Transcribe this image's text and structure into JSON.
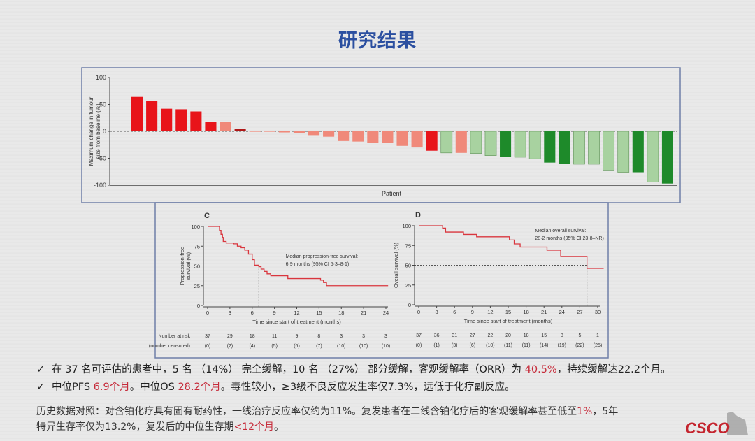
{
  "title": "研究结果",
  "colors": {
    "red": "#e8141a",
    "light_red": "#f0897a",
    "dark_red": "#b01818",
    "light_green": "#a8d2a0",
    "dark_green": "#1e8a2a",
    "km_line": "#d9363e",
    "title": "#2b4fa0"
  },
  "chart_data": [
    {
      "type": "bar",
      "subtype": "waterfall",
      "ylabel": "Maximum change in tumour size from baseline (%)",
      "xlabel": "Patient",
      "ylim": [
        -100,
        100
      ],
      "yticks": [
        "100",
        "50",
        "0",
        "-50",
        "-100"
      ],
      "values": [
        64,
        57,
        42,
        41,
        37,
        18,
        17,
        5,
        0.5,
        0.5,
        -2,
        -3,
        -7,
        -10,
        -18,
        -19,
        -21,
        -22,
        -27,
        -30,
        -36,
        -40,
        -40,
        -41,
        -45,
        -47,
        -48,
        -51,
        -58,
        -60,
        -61,
        -61,
        -72,
        -76,
        -76,
        -94,
        -97
      ],
      "bar_colors": [
        "red",
        "red",
        "red",
        "red",
        "red",
        "red",
        "light_red",
        "dark_red",
        "light_red",
        "light_red",
        "light_red",
        "light_red",
        "light_red",
        "light_red",
        "light_red",
        "light_red",
        "light_red",
        "light_red",
        "light_red",
        "light_red",
        "red",
        "light_green",
        "light_red",
        "light_green",
        "light_green",
        "dark_green",
        "light_green",
        "light_green",
        "dark_green",
        "dark_green",
        "light_green",
        "light_green",
        "light_green",
        "light_green",
        "dark_green",
        "light_green",
        "dark_green"
      ],
      "reference_line": 0
    },
    {
      "type": "line",
      "subtype": "kaplan-meier",
      "panel": "C",
      "ylabel": "Progression-free survival (%)",
      "xlabel": "Time since start of treatment (months)",
      "xlim": [
        0,
        24
      ],
      "ylim": [
        0,
        100
      ],
      "xticks": [
        "0",
        "3",
        "6",
        "9",
        "12",
        "15",
        "18",
        "21",
        "24"
      ],
      "yticks": [
        "0",
        "25",
        "50",
        "75",
        "100"
      ],
      "annotation": [
        "Median progression-free survival:",
        "6·9 months (95% CI 5·3–8·1)"
      ],
      "median": 6.9,
      "steps": [
        [
          0,
          100
        ],
        [
          1.3,
          100
        ],
        [
          1.6,
          95
        ],
        [
          1.8,
          90
        ],
        [
          2,
          86
        ],
        [
          2.1,
          81
        ],
        [
          2.5,
          79
        ],
        [
          3.5,
          78
        ],
        [
          4,
          75
        ],
        [
          4.5,
          73
        ],
        [
          5,
          70
        ],
        [
          5.5,
          65
        ],
        [
          6,
          58
        ],
        [
          6.3,
          51
        ],
        [
          6.9,
          49
        ],
        [
          7.2,
          46
        ],
        [
          7.6,
          43
        ],
        [
          8,
          40
        ],
        [
          8.5,
          37.5
        ],
        [
          10.8,
          34
        ],
        [
          15.2,
          32
        ],
        [
          15.6,
          29
        ],
        [
          16,
          25
        ],
        [
          24.3,
          25
        ]
      ],
      "risk_label": "Number at risk",
      "censored_label": "(number censored)",
      "at_risk": [
        "37",
        "29",
        "18",
        "11",
        "9",
        "8",
        "3",
        "3",
        "3"
      ],
      "censored": [
        "(0)",
        "(2)",
        "(4)",
        "(5)",
        "(6)",
        "(7)",
        "(10)",
        "(10)",
        "(10)"
      ]
    },
    {
      "type": "line",
      "subtype": "kaplan-meier",
      "panel": "D",
      "ylabel": "Overall survival (%)",
      "xlabel": "Time since start of treatment (months)",
      "xlim": [
        0,
        30
      ],
      "ylim": [
        0,
        100
      ],
      "xticks": [
        "0",
        "3",
        "6",
        "9",
        "12",
        "15",
        "18",
        "21",
        "24",
        "27",
        "30"
      ],
      "yticks": [
        "0",
        "25",
        "50",
        "75",
        "100"
      ],
      "annotation": [
        "Median overall survival:",
        "28·2 months (95% CI 23·8–NR)"
      ],
      "median": 28.2,
      "steps": [
        [
          0,
          100
        ],
        [
          3.8,
          100
        ],
        [
          4,
          97
        ],
        [
          4.5,
          92
        ],
        [
          7.5,
          89
        ],
        [
          9.7,
          86
        ],
        [
          14.8,
          86
        ],
        [
          15.2,
          82
        ],
        [
          16,
          77
        ],
        [
          17,
          73
        ],
        [
          21.5,
          69
        ],
        [
          23.8,
          61
        ],
        [
          28,
          61
        ],
        [
          28.2,
          46
        ],
        [
          31,
          46
        ]
      ],
      "at_risk": [
        "37",
        "36",
        "31",
        "27",
        "22",
        "20",
        "18",
        "15",
        "8",
        "5",
        "1"
      ],
      "censored": [
        "(0)",
        "(1)",
        "(3)",
        "(6)",
        "(10)",
        "(11)",
        "(11)",
        "(14)",
        "(19)",
        "(22)",
        "(25)"
      ]
    }
  ],
  "bullets": [
    {
      "check": "✓",
      "parts": [
        {
          "t": "在 37 名可评估的患者中，5 名 （14%） 完全缓解，10 名 （27%） 部分缓解，客观缓解率（ORR）为 "
        },
        {
          "t": "40.5%",
          "red": true
        },
        {
          "t": "，持续缓解达22.2个月。"
        }
      ]
    },
    {
      "check": "✓",
      "parts": [
        {
          "t": "中位PFS "
        },
        {
          "t": "6.9个月",
          "red": true
        },
        {
          "t": "。中位OS "
        },
        {
          "t": "28.2个月",
          "red": true
        },
        {
          "t": "。毒性较小，≥3级不良反应发生率仅7.3%，远低于化疗副反应。"
        }
      ]
    }
  ],
  "history": {
    "line1": [
      {
        "t": "历史数据对照：对含铂化疗具有固有耐药性，一线治疗反应率仅约为11%。复发患者在二线含铂化疗后的客观缓解率甚至低至"
      },
      {
        "t": "1%",
        "red": true
      },
      {
        "t": "，5年"
      }
    ],
    "line2": [
      {
        "t": "特异生存率仅为13.2%，复发后的中位生存期"
      },
      {
        "t": "<12个月",
        "red": true
      },
      {
        "t": "。"
      }
    ]
  },
  "logo": "CSCO"
}
